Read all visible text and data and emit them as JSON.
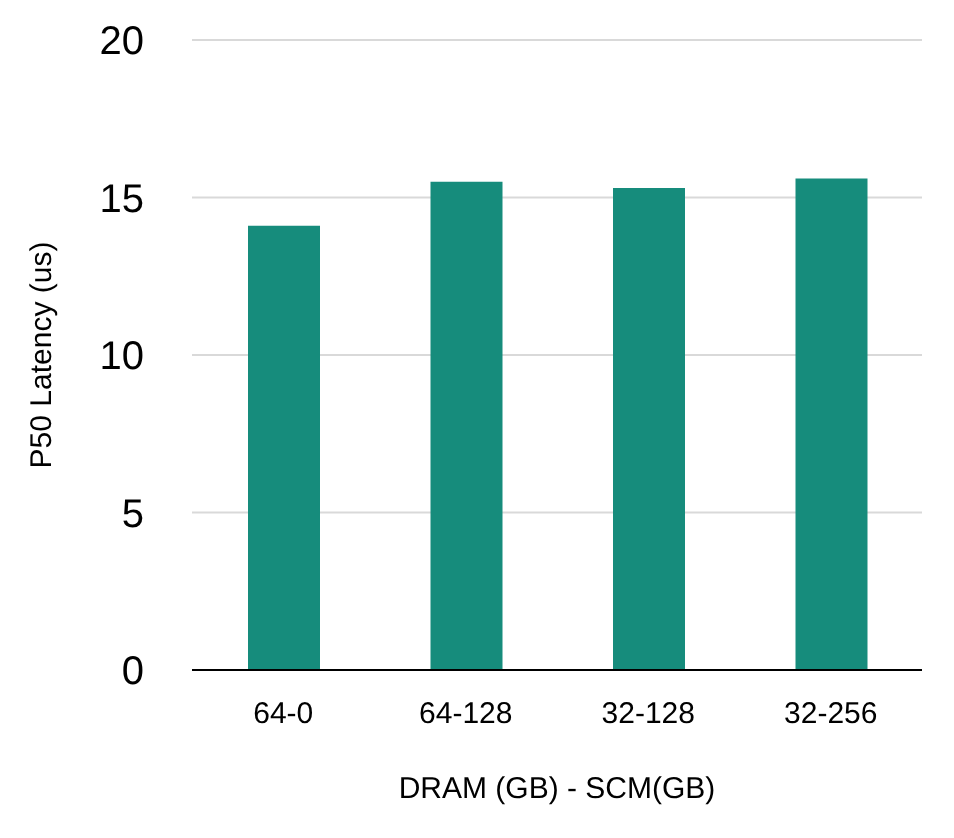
{
  "chart_data": {
    "type": "bar",
    "xlabel": "DRAM (GB) - SCM(GB)",
    "ylabel": "P50 Latency (us)",
    "categories": [
      "64-0",
      "64-128",
      "32-128",
      "32-256"
    ],
    "values": [
      14.1,
      15.5,
      15.3,
      15.6
    ],
    "color": "#168c7c",
    "ylim": [
      0,
      20
    ],
    "yticks": [
      0,
      5,
      10,
      15,
      20
    ],
    "grid": "y"
  }
}
